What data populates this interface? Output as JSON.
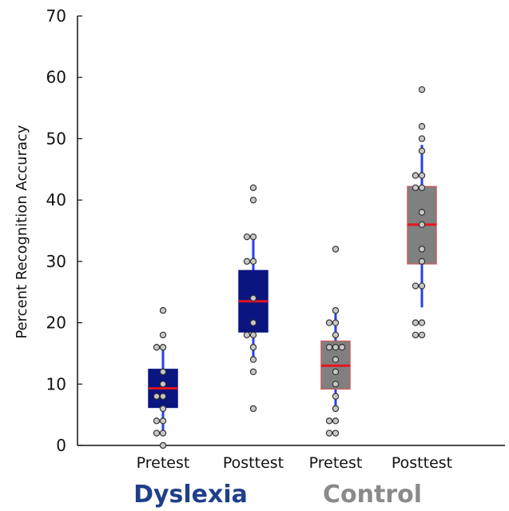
{
  "chart_data": {
    "type": "box",
    "title": "",
    "xlabel": "",
    "ylabel": "Percent Recognition Accuracy",
    "ylim": [
      0,
      70
    ],
    "yticks": [
      0,
      10,
      20,
      30,
      40,
      50,
      60,
      70
    ],
    "grid": false,
    "categories": [
      "Pretest",
      "Posttest",
      "Pretest",
      "Posttest"
    ],
    "groups": [
      {
        "label": "Dyslexia",
        "color": "#1f3f8a",
        "categories": [
          0,
          1
        ]
      },
      {
        "label": "Control",
        "color": "#8a8a8a",
        "categories": [
          2,
          3
        ]
      }
    ],
    "boxes": [
      {
        "category": "Pretest",
        "group": "Dyslexia",
        "fill": "#0a1580",
        "whisker_low": 2,
        "q1": 6.2,
        "median": 9.3,
        "q3": 12.4,
        "whisker_high": 16,
        "points": [
          0,
          2,
          2,
          4,
          4,
          6,
          8,
          8,
          10,
          12,
          16,
          16,
          18,
          22
        ]
      },
      {
        "category": "Posttest",
        "group": "Dyslexia",
        "fill": "#0a1580",
        "whisker_low": 14,
        "q1": 18.5,
        "median": 23.5,
        "q3": 28.5,
        "whisker_high": 34,
        "points": [
          6,
          12,
          14,
          16,
          18,
          18,
          20,
          24,
          30,
          30,
          34,
          34,
          40,
          42
        ]
      },
      {
        "category": "Pretest",
        "group": "Control",
        "fill": "#808080",
        "whisker_low": 6,
        "q1": 9.2,
        "median": 13,
        "q3": 17,
        "whisker_high": 22,
        "points": [
          2,
          2,
          4,
          4,
          6,
          8,
          10,
          12,
          14,
          16,
          16,
          16,
          18,
          20,
          20,
          22,
          32
        ]
      },
      {
        "category": "Posttest",
        "group": "Control",
        "fill": "#808080",
        "whisker_low": 22.5,
        "q1": 29.6,
        "median": 36,
        "q3": 42.2,
        "whisker_high": 49,
        "points": [
          18,
          18,
          20,
          20,
          26,
          26,
          30,
          32,
          36,
          38,
          42,
          42,
          44,
          44,
          48,
          50,
          52,
          58
        ]
      }
    ],
    "colors": {
      "median": "#e8141e",
      "whisker": "#2a3fe8",
      "box_edge_dyslexia": "#0a1580",
      "box_edge_control": "#c06060",
      "point_fill": "#c8c8c8",
      "point_edge": "#333333",
      "axis": "#111111",
      "group_dyslexia": "#1f3f8a",
      "group_control": "#8a8a8a"
    }
  }
}
